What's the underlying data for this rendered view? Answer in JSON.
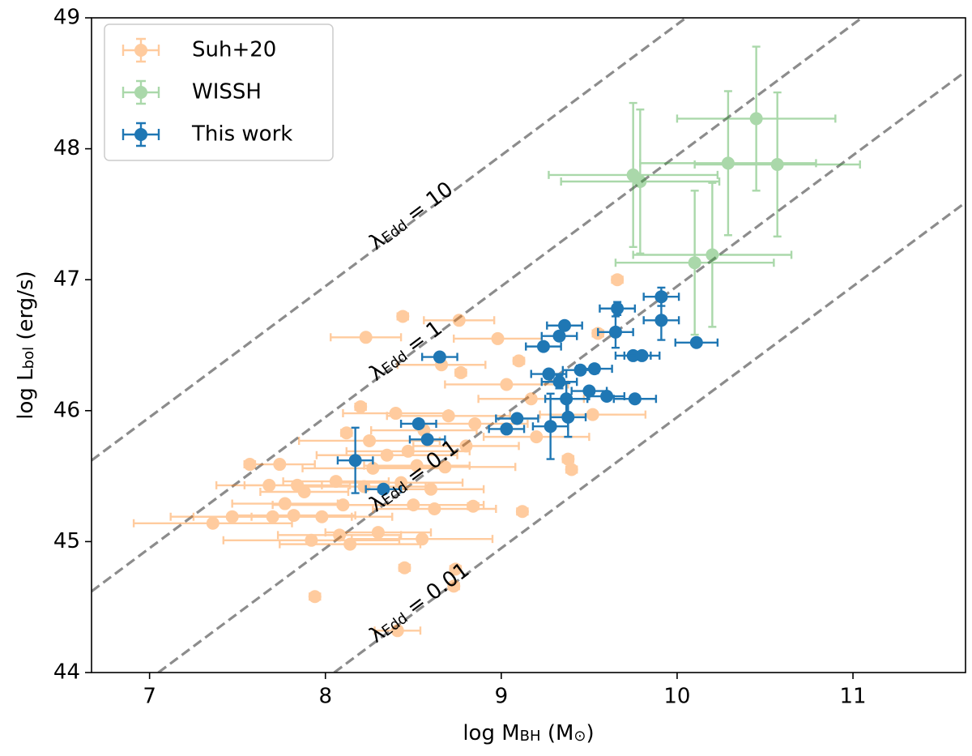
{
  "chart_data": {
    "type": "scatter",
    "xlabel": [
      "log M",
      "BH",
      " (M",
      "⊙",
      ")"
    ],
    "ylabel": [
      "log L",
      "bol",
      " (erg/s)"
    ],
    "xlim": [
      6.67,
      11.64
    ],
    "ylim": [
      44,
      49
    ],
    "xticks": [
      7,
      8,
      9,
      10,
      11
    ],
    "yticks": [
      44,
      45,
      46,
      47,
      48,
      49
    ],
    "legend": "upper left",
    "line_label_symbol": "λ",
    "line_label_subscript": "Edd",
    "lines": [
      {
        "label": "= 10",
        "color": "#8c8c8c",
        "x": [
          6.67,
          10.05
        ],
        "y": [
          45.62,
          49
        ]
      },
      {
        "label": "= 1",
        "color": "#8c8c8c",
        "x": [
          6.67,
          11.05
        ],
        "y": [
          44.62,
          49
        ]
      },
      {
        "label": "= 0.1",
        "color": "#8c8c8c",
        "x": [
          7.05,
          11.64
        ],
        "y": [
          44,
          48.59
        ]
      },
      {
        "label": "= 0.01",
        "color": "#8c8c8c",
        "x": [
          8.05,
          11.64
        ],
        "y": [
          44,
          47.59
        ]
      }
    ],
    "series": [
      {
        "name": "Suh+20",
        "color": "#ff7f0e",
        "alpha": 0.4,
        "x": [
          7.36,
          7.47,
          7.57,
          7.68,
          7.7,
          7.74,
          7.77,
          7.82,
          7.84,
          7.88,
          7.92,
          7.94,
          7.98,
          8.06,
          8.08,
          8.12,
          8.1,
          8.14,
          8.2,
          8.22,
          8.25,
          8.27,
          8.3,
          8.35,
          8.4,
          8.41,
          8.43,
          8.45,
          8.47,
          8.5,
          8.52,
          8.55,
          8.56,
          8.6,
          8.62,
          8.66,
          8.68,
          8.7,
          8.73,
          8.74,
          8.76,
          8.8,
          8.84,
          8.85,
          8.98,
          9.03,
          9.1,
          9.12,
          9.17,
          9.2,
          9.38,
          9.4,
          9.52,
          9.55,
          9.66,
          8.23,
          8.44,
          8.77
        ],
        "values": [
          45.14,
          45.19,
          45.59,
          45.43,
          45.19,
          45.59,
          45.29,
          45.2,
          45.43,
          45.38,
          45.01,
          44.58,
          45.19,
          45.46,
          45.05,
          45.83,
          45.28,
          44.98,
          46.03,
          45.42,
          45.77,
          45.56,
          45.07,
          45.66,
          45.98,
          44.32,
          45.45,
          44.8,
          45.69,
          45.28,
          45.58,
          45.02,
          45.85,
          45.4,
          45.25,
          46.35,
          45.57,
          45.96,
          44.66,
          44.79,
          46.69,
          45.73,
          45.27,
          45.9,
          46.55,
          46.2,
          46.38,
          45.23,
          46.09,
          45.8,
          45.63,
          45.55,
          45.97,
          46.59,
          47.0,
          46.56,
          46.72,
          46.29
        ],
        "xerr": [
          0.45,
          0.35,
          0.03,
          0.3,
          0.45,
          0.2,
          0.3,
          0.35,
          0.3,
          0.25,
          0.5,
          0.03,
          0.4,
          0.3,
          0.35,
          0.03,
          0.4,
          0.4,
          0.03,
          0.35,
          0.4,
          0.4,
          0.3,
          0.4,
          0.3,
          0.13,
          0.35,
          0.03,
          0.35,
          0.4,
          0.3,
          0.4,
          0.3,
          0.3,
          0.35,
          0.25,
          0.4,
          0.35,
          0.03,
          0.03,
          0.2,
          0.3,
          0.03,
          0.3,
          0.25,
          0.35,
          0.03,
          0.03,
          0.3,
          0.3,
          0.03,
          0.03,
          0.3,
          0.03,
          0.03,
          0.2,
          0.03,
          0.03
        ],
        "yerr": [
          0.03,
          0.03,
          0.03,
          0.03,
          0.03,
          0.03,
          0.03,
          0.03,
          0.03,
          0.03,
          0.03,
          0.03,
          0.03,
          0.03,
          0.03,
          0.03,
          0.03,
          0.03,
          0.03,
          0.03,
          0.03,
          0.03,
          0.03,
          0.03,
          0.03,
          0.03,
          0.03,
          0.03,
          0.03,
          0.03,
          0.03,
          0.03,
          0.03,
          0.03,
          0.03,
          0.03,
          0.03,
          0.03,
          0.03,
          0.03,
          0.03,
          0.03,
          0.03,
          0.03,
          0.03,
          0.03,
          0.03,
          0.03,
          0.03,
          0.03,
          0.03,
          0.03,
          0.03,
          0.03,
          0.03,
          0.03,
          0.03,
          0.03
        ]
      },
      {
        "name": "WISSH",
        "color": "#2ca02c",
        "alpha": 0.4,
        "x": [
          9.75,
          9.79,
          10.1,
          10.2,
          10.29,
          10.45,
          10.57
        ],
        "values": [
          47.8,
          47.75,
          47.13,
          47.19,
          47.89,
          48.23,
          47.88
        ],
        "xerr": [
          0.48,
          0.45,
          0.45,
          0.45,
          0.5,
          0.45,
          0.47
        ],
        "yerr": [
          0.55,
          0.55,
          0.55,
          0.55,
          0.55,
          0.55,
          0.55
        ]
      },
      {
        "name": "This work",
        "color": "#1f77b4",
        "alpha": 1,
        "x": [
          8.17,
          8.33,
          8.53,
          8.58,
          8.65,
          9.03,
          9.09,
          9.24,
          9.27,
          9.28,
          9.33,
          9.33,
          9.36,
          9.37,
          9.38,
          9.45,
          9.5,
          9.53,
          9.6,
          9.65,
          9.66,
          9.75,
          9.76,
          9.8,
          9.91,
          9.91,
          10.11
        ],
        "values": [
          45.62,
          45.4,
          45.9,
          45.78,
          46.41,
          45.86,
          45.94,
          46.49,
          46.28,
          45.88,
          46.57,
          46.22,
          46.65,
          46.09,
          45.95,
          46.31,
          46.15,
          46.32,
          46.11,
          46.6,
          46.78,
          46.42,
          46.09,
          46.42,
          46.87,
          46.69,
          46.52
        ],
        "xerr": [
          0.1,
          0.1,
          0.1,
          0.1,
          0.1,
          0.1,
          0.12,
          0.1,
          0.1,
          0.1,
          0.1,
          0.1,
          0.1,
          0.12,
          0.1,
          0.1,
          0.1,
          0.1,
          0.1,
          0.1,
          0.1,
          0.1,
          0.12,
          0.1,
          0.1,
          0.1,
          0.12
        ],
        "yerr": [
          0.25,
          0.03,
          0.03,
          0.03,
          0.03,
          0.03,
          0.03,
          0.03,
          0.03,
          0.25,
          0.03,
          0.05,
          0.03,
          0.12,
          0.15,
          0.03,
          0.03,
          0.03,
          0.03,
          0.12,
          0.05,
          0.03,
          0.03,
          0.03,
          0.07,
          0.15,
          0.03
        ]
      }
    ]
  }
}
